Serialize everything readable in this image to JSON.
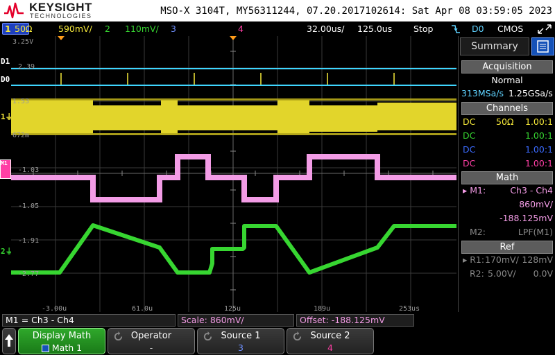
{
  "header": {
    "brand": "KEYSIGHT",
    "brand_sub": "TECHNOLOGIES",
    "device_info": "MSO-X 3104T, MY56311244, 07.20.2017102614: Sat Apr 08 03:59:05 2023"
  },
  "channel_bar": {
    "ch1_impedance": "50Ω",
    "ch1_scale": "590mV/",
    "ch2_number": "2",
    "ch2_scale": "110mV/",
    "ch3_number": "3",
    "ch4_number": "4",
    "timebase": "32.00us/",
    "delay": "125.0us",
    "run_state": "Stop",
    "trigger_icon": "falling-edge-trigger",
    "trigger_source": "D0",
    "trigger_level": "CMOS",
    "colors": {
      "ch1": "#f7ea3a",
      "ch2": "#37d631",
      "ch3": "#3b6bff",
      "ch4": "#ff3fa5"
    }
  },
  "plot": {
    "grid_labels": {
      "y_top": "3.25V",
      "d1_level": "2.39",
      "ch1_level": "1.53",
      "ch1_ref": "672m",
      "m1_level": "-1.03",
      "m1_low": "-1.05",
      "ch2_level": "-1.91",
      "ch2_low": "-2.77"
    },
    "time_labels": [
      "-3.00u",
      "61.0u",
      "125u",
      "189u",
      "253us"
    ],
    "marker_labels": {
      "d1": "D1",
      "d0": "D0",
      "ch1": "1",
      "m1": "M1",
      "ch2": "2"
    }
  },
  "right_panel": {
    "tab_summary": "Summary",
    "acquisition": {
      "title": "Acquisition",
      "mode": "Normal",
      "rate1": "313MSa/s",
      "rate2": "1.25GSa/s"
    },
    "channels": {
      "title": "Channels",
      "rows": [
        {
          "coupling": "DC",
          "impedance": "50Ω",
          "probe": "1.00:1",
          "color": "#f7ea3a"
        },
        {
          "coupling": "DC",
          "impedance": "",
          "probe": "1.00:1",
          "color": "#37d631"
        },
        {
          "coupling": "DC",
          "impedance": "",
          "probe": "1.00:1",
          "color": "#3b6bff"
        },
        {
          "coupling": "DC",
          "impedance": "",
          "probe": "1.00:1",
          "color": "#ff3fa5"
        }
      ]
    },
    "math": {
      "title": "Math",
      "m1_label": "M1:",
      "m1_expr": "Ch3 - Ch4",
      "m1_scale": "860mV/",
      "m1_offset": "-188.125mV",
      "m2_label": "M2:",
      "m2_expr": "LPF(M1)"
    },
    "ref": {
      "title": "Ref",
      "r1_label": "R1:",
      "r1_scale": "170mV/",
      "r1_offset": "128mV",
      "r2_label": "R2:",
      "r2_scale": "5.00V/",
      "r2_offset": "0.0V"
    }
  },
  "status_bar": {
    "math_def": "M1 = Ch3 - Ch4",
    "scale": "Scale: 860mV/",
    "offset": "Offset: -188.125mV"
  },
  "softkeys": {
    "display_math": {
      "title": "Display Math",
      "value": "Math 1"
    },
    "operator": {
      "title": "Operator",
      "value": "-"
    },
    "source1": {
      "title": "Source 1",
      "value": "3"
    },
    "source2": {
      "title": "Source 2",
      "value": "4"
    }
  }
}
